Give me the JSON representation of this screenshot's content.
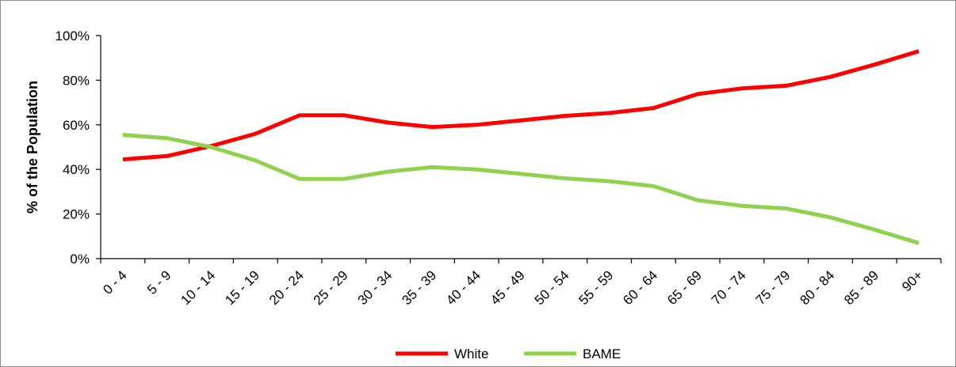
{
  "chart_data": {
    "type": "line",
    "title": "",
    "xlabel": "",
    "ylabel": "% of the Population",
    "ylim": [
      0,
      100
    ],
    "y_ticks": [
      "0%",
      "20%",
      "40%",
      "60%",
      "80%",
      "100%"
    ],
    "y_tick_values": [
      0,
      20,
      40,
      60,
      80,
      100
    ],
    "categories": [
      "0 - 4",
      "5 - 9",
      "10 - 14",
      "15 - 19",
      "20 - 24",
      "25 - 29",
      "30 - 34",
      "35 - 39",
      "40 - 44",
      "45 - 49",
      "50 - 54",
      "55 - 59",
      "60 - 64",
      "65 - 69",
      "70 - 74",
      "75 - 79",
      "80 - 84",
      "85 - 89",
      "90+"
    ],
    "series": [
      {
        "name": "White",
        "color": "#ff0000",
        "values": [
          44.5,
          46,
          50.5,
          56,
          64.3,
          64.3,
          61,
          59,
          60,
          62,
          64,
          65.3,
          67.5,
          73.8,
          76.3,
          77.5,
          81.5,
          87,
          93
        ]
      },
      {
        "name": "BAME",
        "color": "#92d050",
        "values": [
          55.5,
          54,
          50,
          44,
          35.7,
          35.7,
          39,
          41,
          40,
          38,
          36,
          34.7,
          32.5,
          26.2,
          23.7,
          22.5,
          18.5,
          13,
          7
        ]
      }
    ],
    "grid": false,
    "legend": "bottom-center"
  }
}
